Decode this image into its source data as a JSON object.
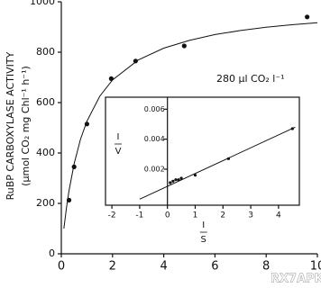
{
  "chart_data": [
    {
      "type": "scatter",
      "ylabel": "RuBP CARBOXYLASE ACTIVITY",
      "ylabel2": "(μmol CO₂ mg Chl⁻¹ h⁻¹)",
      "annotation": "280 μl CO₂ l⁻¹",
      "watermark": "RX7APK",
      "xlim": [
        0,
        10
      ],
      "ylim": [
        0,
        1000
      ],
      "xticks": [
        0,
        2,
        4,
        6,
        8,
        10
      ],
      "yticks": [
        0,
        200,
        400,
        600,
        800,
        1000
      ],
      "color": "#111111",
      "series": [
        {
          "x": [
            0.3,
            0.5,
            1.0,
            1.95,
            2.9,
            4.8,
            9.6
          ],
          "values": [
            213,
            345,
            515,
            695,
            765,
            825,
            940
          ]
        }
      ],
      "curve": {
        "x": [
          0.1,
          0.2,
          0.3,
          0.5,
          0.75,
          1,
          1.5,
          2,
          3,
          4,
          5,
          6,
          7,
          8,
          9,
          10
        ],
        "values": [
          100,
          182,
          250,
          357,
          455,
          526,
          625,
          690,
          769,
          816,
          847,
          870,
          886,
          899,
          909,
          917
        ]
      }
    },
    {
      "type": "scatter",
      "ylabel_num": "I",
      "ylabel_den": "V",
      "xlabel_num": "I",
      "xlabel_den": "S",
      "xlim": [
        -2.23,
        4.75
      ],
      "ylim": [
        -0.0004,
        0.0068
      ],
      "xticks": [
        -2,
        -1,
        0,
        1,
        2,
        3,
        4
      ],
      "yticks": [
        0.002,
        0.004,
        0.006
      ],
      "series": [
        {
          "x": [
            0.1,
            0.2,
            0.3,
            0.4,
            0.5,
            1.0,
            2.2,
            4.5
          ],
          "values": [
            0.0011,
            0.0012,
            0.0013,
            0.0013,
            0.0014,
            0.0016,
            0.0027,
            0.0047
          ]
        }
      ],
      "curve": {
        "x": [
          -1,
          4.6
        ],
        "values": [
          0,
          0.0048
        ]
      }
    }
  ]
}
